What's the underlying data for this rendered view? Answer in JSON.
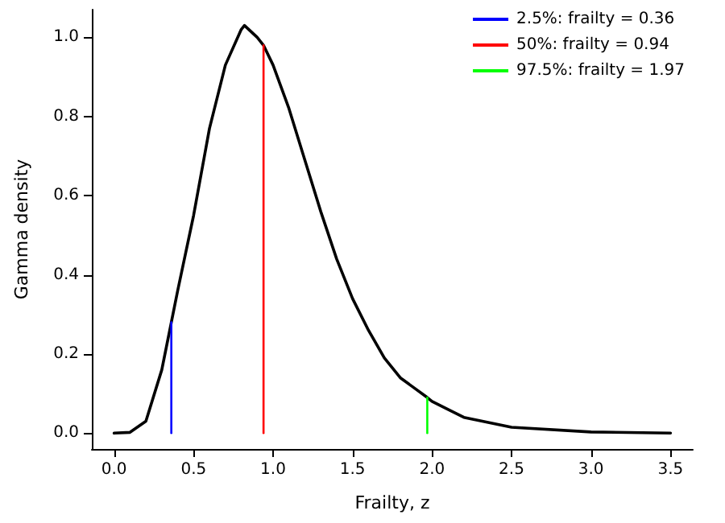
{
  "chart_data": {
    "type": "line",
    "xlabel": "Frailty, z",
    "ylabel": "Gamma density",
    "xlim": [
      -0.14,
      3.64
    ],
    "ylim": [
      -0.04,
      1.07
    ],
    "xticks": [
      {
        "value": 0,
        "label": "0.0"
      },
      {
        "value": 0.5,
        "label": "0.5"
      },
      {
        "value": 1,
        "label": "1.0"
      },
      {
        "value": 1.5,
        "label": "1.5"
      },
      {
        "value": 2,
        "label": "2.0"
      },
      {
        "value": 2.5,
        "label": "2.5"
      },
      {
        "value": 3,
        "label": "3.0"
      },
      {
        "value": 3.5,
        "label": "3.5"
      }
    ],
    "yticks": [
      {
        "value": 0,
        "label": "0.0"
      },
      {
        "value": 0.2,
        "label": "0.2"
      },
      {
        "value": 0.4,
        "label": "0.4"
      },
      {
        "value": 0.6,
        "label": "0.6"
      },
      {
        "value": 0.8,
        "label": "0.8"
      },
      {
        "value": 1,
        "label": "1.0"
      }
    ],
    "grid": false,
    "legend": "top right",
    "marker": "none",
    "line_style": "solid",
    "series": [
      {
        "color": "#000000",
        "x": [
          0,
          0.1,
          0.2,
          0.3,
          0.36,
          0.4,
          0.5,
          0.6,
          0.7,
          0.8,
          0.82,
          0.9,
          0.94,
          1.0,
          1.1,
          1.2,
          1.3,
          1.4,
          1.5,
          1.6,
          1.7,
          1.8,
          1.97,
          2.0,
          2.2,
          2.5,
          3.0,
          3.5
        ],
        "values": [
          0,
          0.002,
          0.03,
          0.16,
          0.28,
          0.36,
          0.55,
          0.77,
          0.93,
          1.02,
          1.03,
          1.0,
          0.98,
          0.93,
          0.82,
          0.69,
          0.56,
          0.44,
          0.34,
          0.26,
          0.19,
          0.14,
          0.09,
          0.08,
          0.04,
          0.015,
          0.003,
          0
        ]
      },
      {
        "name": "2.5%: frailty = 0.36",
        "color": "#0000ff",
        "x": [
          0.36,
          0.36
        ],
        "values": [
          0,
          0.28
        ]
      },
      {
        "name": "50%: frailty = 0.94",
        "color": "#ff0000",
        "x": [
          0.94,
          0.94
        ],
        "values": [
          0,
          0.98
        ]
      },
      {
        "name": "97.5%: frailty = 1.97",
        "color": "#00ff00",
        "x": [
          1.97,
          1.97
        ],
        "values": [
          0,
          0.09
        ]
      }
    ]
  }
}
